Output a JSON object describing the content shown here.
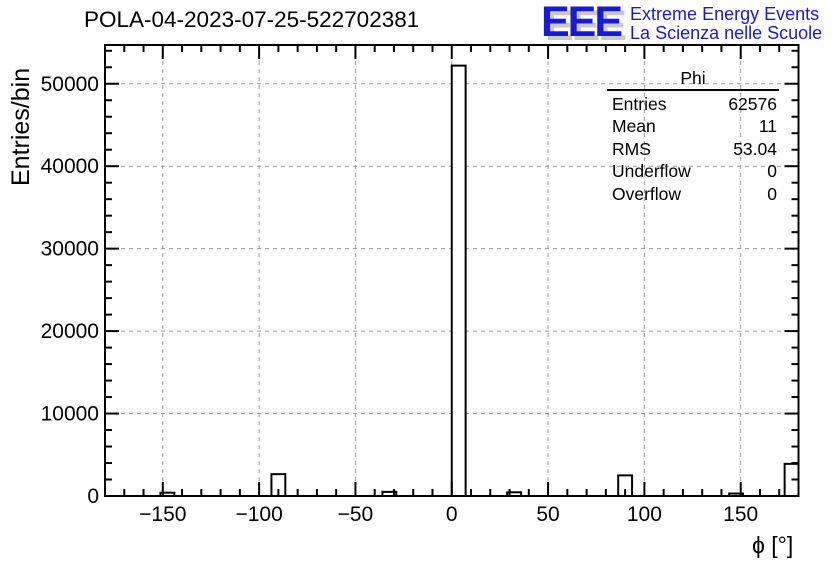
{
  "header": {
    "title": "POLA-04-2023-07-25-522702381",
    "logo": {
      "acronym": "EEE",
      "line1": "Extreme Energy Events",
      "line2": "La Scienza nelle Scuole",
      "color": "#1a1ad2",
      "shadow_color": "#c9c9c9"
    }
  },
  "stats_box": {
    "title": "Phi",
    "rows": [
      {
        "label": "Entries",
        "value": "62576"
      },
      {
        "label": "Mean",
        "value": "11"
      },
      {
        "label": "RMS",
        "value": "53.04"
      },
      {
        "label": "Underflow",
        "value": "0"
      },
      {
        "label": "Overflow",
        "value": "0"
      }
    ]
  },
  "chart_data": {
    "type": "bar",
    "title": "POLA-04-2023-07-25-522702381",
    "xlabel": "ϕ [°]",
    "ylabel": "Entries/bin",
    "xlim": [
      -180,
      180
    ],
    "ylim": [
      0,
      54700
    ],
    "n_bins": 50,
    "bin_width": 7.2,
    "bars": [
      {
        "x0": -151.2,
        "x1": -144.0,
        "count": 400
      },
      {
        "x0": -93.6,
        "x1": -86.4,
        "count": 2650
      },
      {
        "x0": -36.0,
        "x1": -28.8,
        "count": 500
      },
      {
        "x0": 0.0,
        "x1": 7.2,
        "count": 52200
      },
      {
        "x0": 28.8,
        "x1": 36.0,
        "count": 450
      },
      {
        "x0": 86.4,
        "x1": 93.6,
        "count": 2500
      },
      {
        "x0": 144.0,
        "x1": 151.2,
        "count": 300
      },
      {
        "x0": 172.8,
        "x1": 180.0,
        "count": 3900
      }
    ],
    "x_ticks": {
      "major": [
        -150,
        -100,
        -50,
        0,
        50,
        100,
        150
      ],
      "labels": [
        "−150",
        "−100",
        "−50",
        "0",
        "50",
        "100",
        "150"
      ],
      "minor_step": 10
    },
    "y_ticks": {
      "major": [
        0,
        10000,
        20000,
        30000,
        40000,
        50000
      ],
      "labels": [
        "0",
        "10000",
        "20000",
        "30000",
        "40000",
        "50000"
      ],
      "minor_step": 2000
    },
    "grid": {
      "show": true,
      "color": "#9c9c9c",
      "dash": "4 4"
    },
    "bar_style": {
      "stroke": "#000000",
      "fill": "#ffffff",
      "stroke_width": 2
    },
    "legend_position": "none"
  }
}
